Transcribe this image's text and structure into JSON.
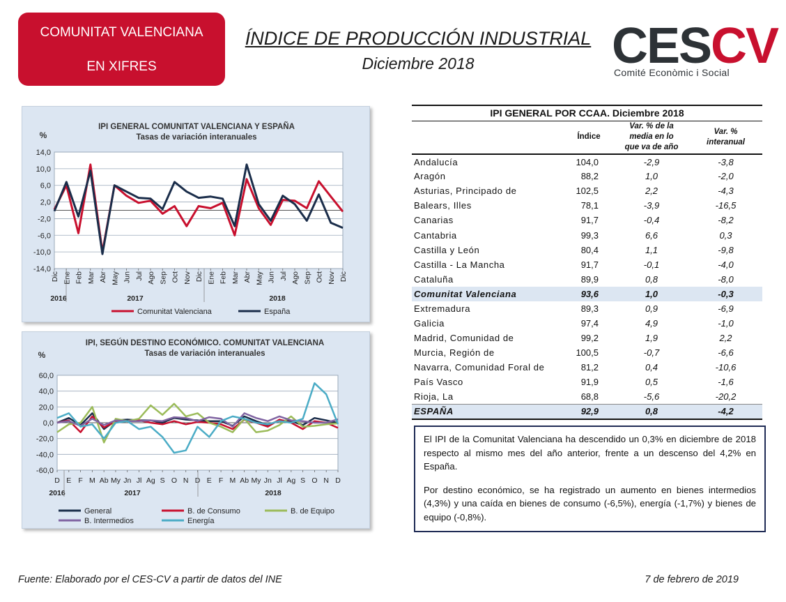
{
  "header": {
    "badge_line1": "COMUNITAT VALENCIANA",
    "badge_line2": "EN XIFRES",
    "title": "ÍNDICE DE PRODUCCIÓN INDUSTRIAL",
    "subtitle": "Diciembre 2018",
    "logo_ces": "CES",
    "logo_cv": "CV",
    "logo_sub": "Comité Econòmic i Social",
    "colors": {
      "accent_red": "#c8102e",
      "logo_dark": "#2d3236",
      "panel_bg": "#dce6f2"
    }
  },
  "chart_data": [
    {
      "type": "line",
      "title": "IPI GENERAL  COMUNITAT  VALENCIANA Y ESPAÑA",
      "subtitle": "Tasas de variación  interanuales",
      "ylabel": "%",
      "ylim": [
        -14,
        14
      ],
      "yticks": [
        "14,0",
        "10,0",
        "6,0",
        "2,0",
        "-2,0",
        "-6,0",
        "-10,0",
        "-14,0"
      ],
      "categories": [
        "Dic",
        "Ene",
        "Feb",
        "Mar",
        "Abr",
        "May",
        "Jun",
        "Jul",
        "Ago",
        "Sep",
        "Oct",
        "Nov",
        "Dic",
        "Ene",
        "Feb",
        "Mar",
        "Abr",
        "May",
        "Jun",
        "Jul",
        "Ago",
        "Sep",
        "Oct",
        "Nov",
        "Dic"
      ],
      "years": [
        "2016",
        "2017",
        "2018"
      ],
      "legend_position": "bottom",
      "series": [
        {
          "name": "Comunitat Valenciana",
          "color": "#c8102e",
          "values": [
            0.2,
            6.0,
            -5.5,
            11.0,
            -10.0,
            6.0,
            3.5,
            1.8,
            2.3,
            -0.8,
            1.0,
            -3.8,
            1.0,
            0.5,
            1.8,
            -6.0,
            7.5,
            0.5,
            -3.5,
            2.5,
            2.3,
            0.5,
            7.0,
            3.3,
            -0.3
          ]
        },
        {
          "name": "España",
          "color": "#1a2d4a",
          "values": [
            -0.2,
            6.8,
            -1.5,
            9.5,
            -10.5,
            6.0,
            4.5,
            3.0,
            2.8,
            0.3,
            6.8,
            4.5,
            3.0,
            3.3,
            2.8,
            -3.8,
            11.0,
            1.5,
            -2.5,
            3.5,
            1.5,
            -2.5,
            3.8,
            -3.0,
            -4.2
          ]
        }
      ]
    },
    {
      "type": "line",
      "title": "IPI, SEGÚN DESTINO ECONÓMICO. COMUNITAT VALENCIANA",
      "subtitle": "Tasas de variación  interanuales",
      "ylabel": "%",
      "ylim": [
        -60,
        60
      ],
      "yticks": [
        "60,0",
        "40,0",
        "20,0",
        "0,0",
        "-20,0",
        "-40,0",
        "-60,0"
      ],
      "categories": [
        "D",
        "E",
        "F",
        "M",
        "Ab",
        "My",
        "Jn",
        "Jl",
        "Ag",
        "S",
        "O",
        "N",
        "D",
        "E",
        "F",
        "M",
        "Ab",
        "My",
        "Jn",
        "Jl",
        "Ag",
        "S",
        "O",
        "N",
        "D"
      ],
      "years": [
        "2016",
        "2017",
        "2018"
      ],
      "legend_position": "bottom",
      "series": [
        {
          "name": "General",
          "color": "#1a2d4a",
          "values": [
            0,
            6,
            -3,
            12,
            -8,
            3,
            4,
            3,
            3,
            0,
            6,
            4,
            3,
            2,
            2,
            -4,
            8,
            2,
            -3,
            3,
            2,
            -3,
            6,
            3,
            -0.3
          ]
        },
        {
          "name": "B. de Consumo",
          "color": "#c8102e",
          "values": [
            0,
            3,
            -12,
            8,
            -6,
            2,
            2,
            3,
            0,
            -2,
            2,
            -2,
            1,
            0,
            -2,
            -8,
            4,
            0,
            -5,
            4,
            0,
            -8,
            2,
            0,
            -6.5
          ]
        },
        {
          "name": "B. de Equipo",
          "color": "#9bbb59",
          "values": [
            -12,
            -2,
            0,
            20,
            -25,
            5,
            2,
            5,
            22,
            10,
            24,
            8,
            12,
            0,
            -5,
            -12,
            5,
            -12,
            -10,
            -3,
            8,
            -5,
            -4,
            -2,
            -0.8
          ]
        },
        {
          "name": "B. Intermedios",
          "color": "#8064a2",
          "values": [
            0,
            2,
            -4,
            5,
            -3,
            3,
            2,
            2,
            3,
            2,
            7,
            6,
            2,
            7,
            5,
            -5,
            12,
            6,
            2,
            8,
            3,
            2,
            0,
            0,
            4.3
          ]
        },
        {
          "name": "Energía",
          "color": "#4bacc6",
          "values": [
            6,
            12,
            -5,
            -2,
            -20,
            0,
            2,
            -8,
            -5,
            -18,
            -38,
            -35,
            -5,
            -18,
            2,
            8,
            5,
            0,
            -2,
            2,
            0,
            5,
            50,
            36,
            -1.7
          ]
        }
      ]
    }
  ],
  "table": {
    "title": "IPI GENERAL POR CCAA. Diciembre 2018",
    "col_index": "Índice",
    "col_media": "Var. % de la media en lo que va de año",
    "col_media_lines": [
      "Var. % de la",
      "media en lo",
      "que va de año"
    ],
    "col_interanual_lines": [
      "Var. %",
      "interanual"
    ],
    "rows": [
      {
        "name": "Andalucía",
        "indice": "104,0",
        "media": "-2,9",
        "interanual": "-3,8"
      },
      {
        "name": "Aragón",
        "indice": "88,2",
        "media": "1,0",
        "interanual": "-2,0"
      },
      {
        "name": "Asturias, Principado de",
        "indice": "102,5",
        "media": "2,2",
        "interanual": "-4,3"
      },
      {
        "name": "Balears, Illes",
        "indice": "78,1",
        "media": "-3,9",
        "interanual": "-16,5"
      },
      {
        "name": "Canarias",
        "indice": "91,7",
        "media": "-0,4",
        "interanual": "-8,2"
      },
      {
        "name": "Cantabria",
        "indice": "99,3",
        "media": "6,6",
        "interanual": "0,3"
      },
      {
        "name": "Castilla y León",
        "indice": "80,4",
        "media": "1,1",
        "interanual": "-9,8"
      },
      {
        "name": "Castilla - La Mancha",
        "indice": "91,7",
        "media": "-0,1",
        "interanual": "-4,0"
      },
      {
        "name": "Cataluña",
        "indice": "89,9",
        "media": "0,8",
        "interanual": "-8,0"
      },
      {
        "name": "Comunitat Valenciana",
        "indice": "93,6",
        "media": "1,0",
        "interanual": "-0,3",
        "highlight": true
      },
      {
        "name": "Extremadura",
        "indice": "89,3",
        "media": "0,9",
        "interanual": "-6,9"
      },
      {
        "name": "Galicia",
        "indice": "97,4",
        "media": "4,9",
        "interanual": "-1,0"
      },
      {
        "name": "Madrid, Comunidad de",
        "indice": "99,2",
        "media": "1,9",
        "interanual": "2,2"
      },
      {
        "name": "Murcia, Región de",
        "indice": "100,5",
        "media": "-0,7",
        "interanual": "-6,6"
      },
      {
        "name": "Navarra, Comunidad Foral de",
        "indice": "81,2",
        "media": "0,4",
        "interanual": "-10,6"
      },
      {
        "name": "País Vasco",
        "indice": "91,9",
        "media": "0,5",
        "interanual": "-1,6"
      },
      {
        "name": "Rioja, La",
        "indice": "68,8",
        "media": "-5,6",
        "interanual": "-20,2"
      },
      {
        "name": "ESPAÑA",
        "indice": "92,9",
        "media": "0,8",
        "interanual": "-4,2",
        "highlight": true,
        "total": true
      }
    ]
  },
  "summary": {
    "p1": "El IPI de la Comunitat Valenciana ha descendido un 0,3% en diciembre de 2018 respecto al mismo mes del año anterior, frente a un descenso del 4,2% en España.",
    "p2": "Por destino económico, se ha registrado un aumento en bienes intermedios (4,3%) y una caída en bienes de consumo (-6,5%), energía (-1,7%) y bienes de equipo (-0,8%)."
  },
  "footer": {
    "source": "Fuente: Elaborado por el CES-CV a partir de datos del INE",
    "date": "7 de febrero de 2019"
  }
}
